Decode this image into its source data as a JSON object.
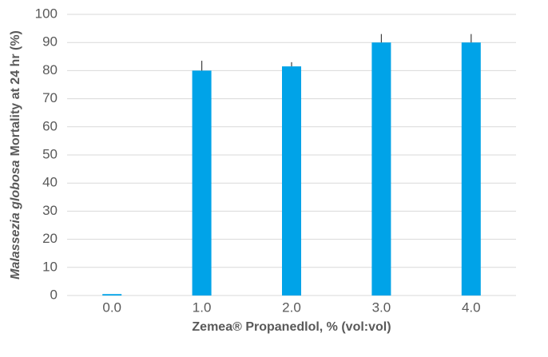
{
  "chart_data": {
    "type": "bar",
    "x_label": "Zemea® Propanedlol, % (vol:vol)",
    "y_label": [
      "Malassezia globosa",
      "Mortality at 24 hr (%)"
    ],
    "categories": [
      "0.0",
      "1.0",
      "2.0",
      "3.0",
      "4.0"
    ],
    "values": [
      0.5,
      80,
      81.5,
      90,
      90
    ],
    "errors": [
      null,
      3.5,
      1.5,
      3,
      3
    ],
    "color": "#00a3e8",
    "ylim": [
      0,
      100
    ],
    "yticks": [
      0,
      10,
      20,
      30,
      40,
      50,
      60,
      70,
      80,
      90,
      100
    ],
    "grid": true
  }
}
